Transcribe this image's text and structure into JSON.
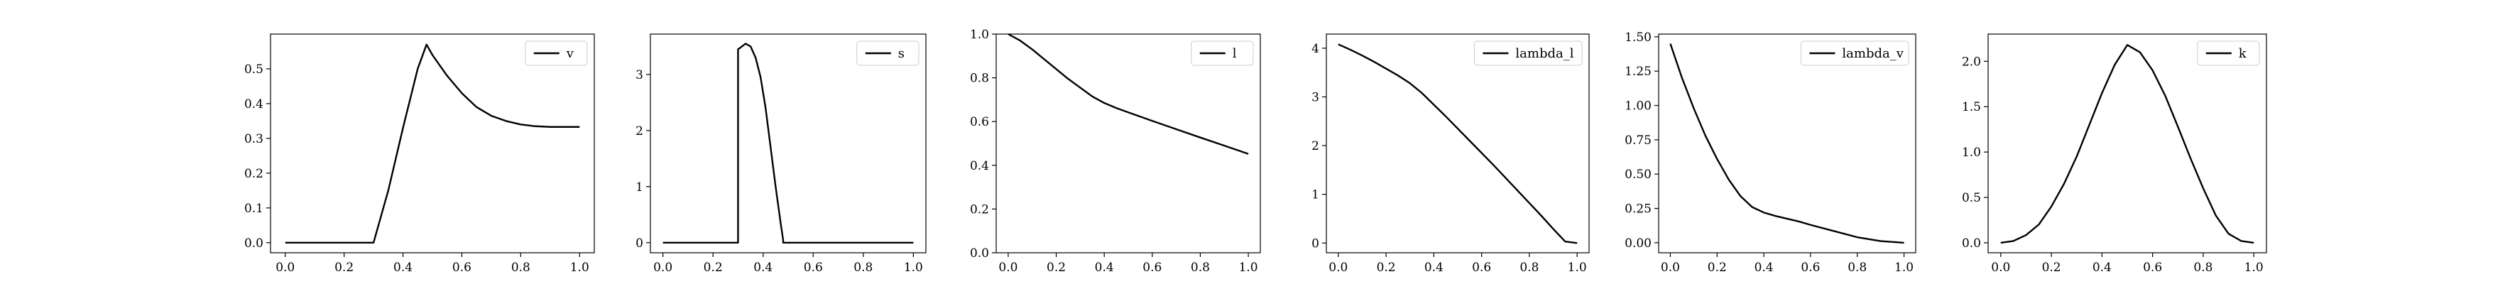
{
  "chart_data": [
    {
      "type": "line",
      "x": [
        0.0,
        0.05,
        0.1,
        0.15,
        0.2,
        0.25,
        0.3,
        0.35,
        0.4,
        0.45,
        0.48,
        0.5,
        0.55,
        0.6,
        0.65,
        0.7,
        0.75,
        0.8,
        0.85,
        0.9,
        0.95,
        1.0
      ],
      "series": [
        {
          "name": "v",
          "color": "#000000",
          "values": [
            0,
            0,
            0,
            0,
            0,
            0,
            0,
            0.15,
            0.33,
            0.5,
            0.57,
            0.54,
            0.48,
            0.43,
            0.39,
            0.365,
            0.35,
            0.34,
            0.335,
            0.333,
            0.333,
            0.333
          ]
        }
      ],
      "xlim": [
        -0.05,
        1.05
      ],
      "ylim": [
        -0.029,
        0.6
      ],
      "xticks": [
        {
          "v": 0,
          "label": "0.0"
        },
        {
          "v": 0.2,
          "label": "0.2"
        },
        {
          "v": 0.4,
          "label": "0.4"
        },
        {
          "v": 0.6,
          "label": "0.6"
        },
        {
          "v": 0.8,
          "label": "0.8"
        },
        {
          "v": 1,
          "label": "1.0"
        }
      ],
      "yticks": [
        {
          "v": 0,
          "label": "0.0"
        },
        {
          "v": 0.1,
          "label": "0.1"
        },
        {
          "v": 0.2,
          "label": "0.2"
        },
        {
          "v": 0.3,
          "label": "0.3"
        },
        {
          "v": 0.4,
          "label": "0.4"
        },
        {
          "v": 0.5,
          "label": "0.5"
        }
      ],
      "legend": "upper right"
    },
    {
      "type": "line",
      "x": [
        0.0,
        0.1,
        0.2,
        0.3,
        0.3,
        0.31,
        0.33,
        0.35,
        0.37,
        0.39,
        0.41,
        0.43,
        0.45,
        0.47,
        0.48,
        0.48,
        0.6,
        0.8,
        1.0
      ],
      "series": [
        {
          "name": "s",
          "color": "#000000",
          "values": [
            0,
            0,
            0,
            0,
            3.45,
            3.48,
            3.55,
            3.5,
            3.3,
            2.95,
            2.4,
            1.7,
            1.0,
            0.35,
            0.05,
            0,
            0,
            0,
            0
          ]
        }
      ],
      "xlim": [
        -0.05,
        1.05
      ],
      "ylim": [
        -0.18,
        3.72
      ],
      "xticks": [
        {
          "v": 0,
          "label": "0.0"
        },
        {
          "v": 0.2,
          "label": "0.2"
        },
        {
          "v": 0.4,
          "label": "0.4"
        },
        {
          "v": 0.6,
          "label": "0.6"
        },
        {
          "v": 0.8,
          "label": "0.8"
        },
        {
          "v": 1,
          "label": "1.0"
        }
      ],
      "yticks": [
        {
          "v": 0,
          "label": "0"
        },
        {
          "v": 1,
          "label": "1"
        },
        {
          "v": 2,
          "label": "2"
        },
        {
          "v": 3,
          "label": "3"
        }
      ],
      "legend": "upper right"
    },
    {
      "type": "line",
      "x": [
        0.0,
        0.05,
        0.1,
        0.15,
        0.2,
        0.25,
        0.3,
        0.35,
        0.4,
        0.45,
        0.5,
        0.6,
        0.7,
        0.8,
        0.9,
        1.0
      ],
      "series": [
        {
          "name": "l",
          "color": "#000000",
          "values": [
            1.0,
            0.97,
            0.93,
            0.885,
            0.84,
            0.795,
            0.755,
            0.715,
            0.685,
            0.662,
            0.642,
            0.603,
            0.565,
            0.527,
            0.49,
            0.452
          ]
        }
      ],
      "xlim": [
        -0.05,
        1.05
      ],
      "ylim": [
        0.0,
        1.0
      ],
      "xticks": [
        {
          "v": 0,
          "label": "0.0"
        },
        {
          "v": 0.2,
          "label": "0.2"
        },
        {
          "v": 0.4,
          "label": "0.4"
        },
        {
          "v": 0.6,
          "label": "0.6"
        },
        {
          "v": 0.8,
          "label": "0.8"
        },
        {
          "v": 1,
          "label": "1.0"
        }
      ],
      "yticks": [
        {
          "v": 0,
          "label": "0.0"
        },
        {
          "v": 0.2,
          "label": "0.2"
        },
        {
          "v": 0.4,
          "label": "0.4"
        },
        {
          "v": 0.6,
          "label": "0.6"
        },
        {
          "v": 0.8,
          "label": "0.8"
        },
        {
          "v": 1,
          "label": "1.0"
        }
      ],
      "legend": "upper right"
    },
    {
      "type": "line",
      "x": [
        0.0,
        0.05,
        0.1,
        0.15,
        0.2,
        0.25,
        0.3,
        0.35,
        0.4,
        0.45,
        0.5,
        0.55,
        0.6,
        0.65,
        0.7,
        0.75,
        0.8,
        0.85,
        0.9,
        0.95,
        1.0
      ],
      "series": [
        {
          "name": "lambda_l",
          "color": "#000000",
          "values": [
            4.08,
            3.97,
            3.85,
            3.72,
            3.58,
            3.44,
            3.28,
            3.08,
            2.84,
            2.6,
            2.35,
            2.1,
            1.85,
            1.6,
            1.34,
            1.08,
            0.82,
            0.56,
            0.29,
            0.03,
            0.0
          ]
        }
      ],
      "xlim": [
        -0.05,
        1.05
      ],
      "ylim": [
        -0.2,
        4.29
      ],
      "xticks": [
        {
          "v": 0,
          "label": "0.0"
        },
        {
          "v": 0.2,
          "label": "0.2"
        },
        {
          "v": 0.4,
          "label": "0.4"
        },
        {
          "v": 0.6,
          "label": "0.6"
        },
        {
          "v": 0.8,
          "label": "0.8"
        },
        {
          "v": 1,
          "label": "1.0"
        }
      ],
      "yticks": [
        {
          "v": 0,
          "label": "0"
        },
        {
          "v": 1,
          "label": "1"
        },
        {
          "v": 2,
          "label": "2"
        },
        {
          "v": 3,
          "label": "3"
        },
        {
          "v": 4,
          "label": "4"
        }
      ],
      "legend": "upper right"
    },
    {
      "type": "line",
      "x": [
        0.0,
        0.05,
        0.1,
        0.15,
        0.2,
        0.25,
        0.3,
        0.35,
        0.4,
        0.45,
        0.5,
        0.55,
        0.6,
        0.7,
        0.8,
        0.9,
        1.0
      ],
      "series": [
        {
          "name": "lambda_v",
          "color": "#000000",
          "values": [
            1.45,
            1.2,
            0.98,
            0.78,
            0.61,
            0.46,
            0.34,
            0.26,
            0.22,
            0.195,
            0.175,
            0.155,
            0.13,
            0.085,
            0.04,
            0.012,
            0.0
          ]
        }
      ],
      "xlim": [
        -0.05,
        1.05
      ],
      "ylim": [
        -0.073,
        1.52
      ],
      "xticks": [
        {
          "v": 0,
          "label": "0.0"
        },
        {
          "v": 0.2,
          "label": "0.2"
        },
        {
          "v": 0.4,
          "label": "0.4"
        },
        {
          "v": 0.6,
          "label": "0.6"
        },
        {
          "v": 0.8,
          "label": "0.8"
        },
        {
          "v": 1,
          "label": "1.0"
        }
      ],
      "yticks": [
        {
          "v": 0,
          "label": "0.00"
        },
        {
          "v": 0.25,
          "label": "0.25"
        },
        {
          "v": 0.5,
          "label": "0.50"
        },
        {
          "v": 0.75,
          "label": "0.75"
        },
        {
          "v": 1,
          "label": "1.00"
        },
        {
          "v": 1.25,
          "label": "1.25"
        },
        {
          "v": 1.5,
          "label": "1.50"
        }
      ],
      "legend": "upper right"
    },
    {
      "type": "line",
      "x": [
        0.0,
        0.05,
        0.1,
        0.15,
        0.2,
        0.25,
        0.3,
        0.35,
        0.4,
        0.45,
        0.5,
        0.55,
        0.6,
        0.65,
        0.7,
        0.75,
        0.8,
        0.85,
        0.9,
        0.95,
        1.0
      ],
      "series": [
        {
          "name": "k",
          "color": "#000000",
          "values": [
            0,
            0.02,
            0.085,
            0.2,
            0.4,
            0.65,
            0.95,
            1.3,
            1.65,
            1.96,
            2.18,
            2.1,
            1.9,
            1.62,
            1.28,
            0.93,
            0.6,
            0.3,
            0.1,
            0.02,
            0
          ]
        }
      ],
      "xlim": [
        -0.05,
        1.05
      ],
      "ylim": [
        -0.11,
        2.3
      ],
      "xticks": [
        {
          "v": 0,
          "label": "0.0"
        },
        {
          "v": 0.2,
          "label": "0.2"
        },
        {
          "v": 0.4,
          "label": "0.4"
        },
        {
          "v": 0.6,
          "label": "0.6"
        },
        {
          "v": 0.8,
          "label": "0.8"
        },
        {
          "v": 1,
          "label": "1.0"
        }
      ],
      "yticks": [
        {
          "v": 0,
          "label": "0.0"
        },
        {
          "v": 0.5,
          "label": "0.5"
        },
        {
          "v": 1,
          "label": "1.0"
        },
        {
          "v": 1.5,
          "label": "1.5"
        },
        {
          "v": 2,
          "label": "2.0"
        }
      ],
      "legend": "upper right"
    }
  ]
}
